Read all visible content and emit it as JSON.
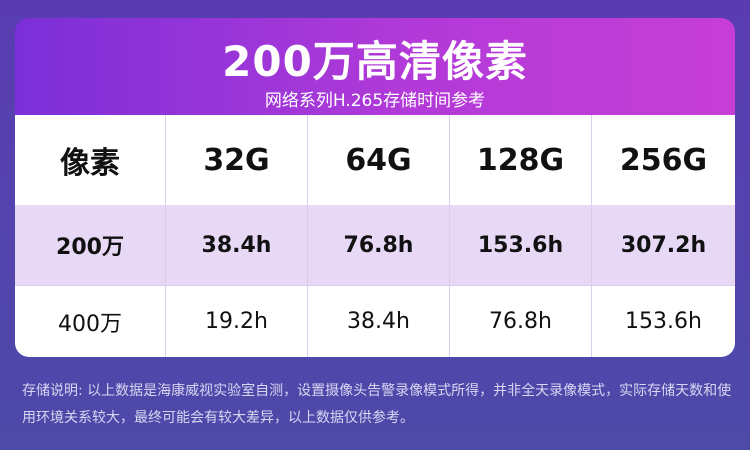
{
  "header": {
    "title": "200万高清像素",
    "subtitle": "网络系列H.265存储时间参考"
  },
  "table": {
    "columns": [
      "像素",
      "32G",
      "64G",
      "128G",
      "256G"
    ],
    "rows": [
      [
        "200万",
        "38.4h",
        "76.8h",
        "153.6h",
        "307.2h"
      ],
      [
        "400万",
        "19.2h",
        "38.4h",
        "76.8h",
        "153.6h"
      ]
    ]
  },
  "footnote": "存储说明: 以上数据是海康威视实验室自测，设置摄像头告警录像模式所得，并非全天录像模式，实际存储天数和使用环境关系较大，最终可能会有较大差异，以上数据仅供参考。"
}
